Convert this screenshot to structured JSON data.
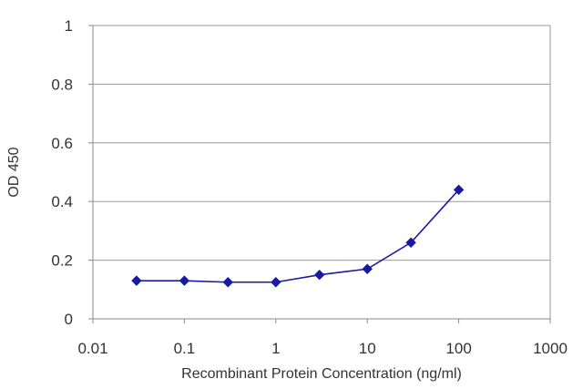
{
  "chart_data": {
    "type": "line",
    "title": "",
    "xlabel": "Recombinant Protein Concentration (ng/ml)",
    "ylabel": "OD 450",
    "x_scale": "log",
    "xlim": [
      0.01,
      1000
    ],
    "ylim": [
      0,
      1
    ],
    "x_ticks": [
      0.01,
      0.1,
      1,
      10,
      100,
      1000
    ],
    "x_tick_labels": [
      "0.01",
      "0.1",
      "1",
      "10",
      "100",
      "1000"
    ],
    "y_ticks": [
      0,
      0.2,
      0.4,
      0.6,
      0.8,
      1
    ],
    "y_tick_labels": [
      "0",
      "0.2",
      "0.4",
      "0.6",
      "0.8",
      "1"
    ],
    "grid": "horizontal",
    "legend": "none",
    "series": [
      {
        "color": "#1a1aa0",
        "marker": "diamond",
        "x": [
          0.03,
          0.1,
          0.3,
          1,
          3,
          10,
          30,
          100
        ],
        "y": [
          0.13,
          0.13,
          0.125,
          0.125,
          0.15,
          0.17,
          0.26,
          0.44
        ]
      }
    ]
  }
}
